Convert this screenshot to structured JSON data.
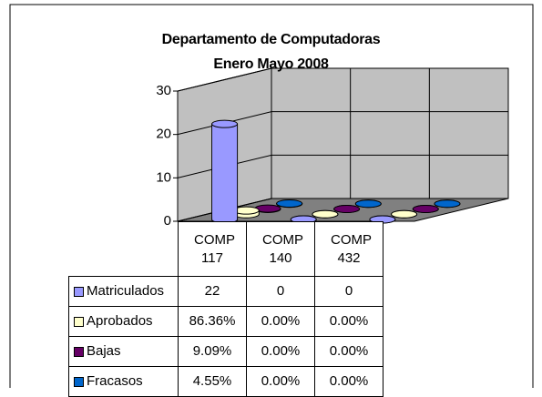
{
  "chart_data": {
    "type": "bar3d",
    "title": "Departamento de Computadoras\nEnero Mayo 2008",
    "categories": [
      "COMP 117",
      "COMP 140",
      "COMP 432"
    ],
    "series": [
      {
        "name": "Matriculados",
        "color": "#9999ff",
        "values": [
          22,
          0,
          0
        ]
      },
      {
        "name": "Aprobados",
        "color": "#ffffcc",
        "values": [
          0.8636,
          0,
          0
        ],
        "value_labels": [
          "86.36%",
          "0.00%",
          "0.00%"
        ]
      },
      {
        "name": "Bajas",
        "color": "#660066",
        "values": [
          0.0909,
          0,
          0
        ],
        "value_labels": [
          "9.09%",
          "0.00%",
          "0.00%"
        ]
      },
      {
        "name": "Fracasos",
        "color": "#0066cc",
        "values": [
          0.0455,
          0,
          0
        ],
        "value_labels": [
          "4.55%",
          "0.00%",
          "0.00%"
        ]
      }
    ],
    "ylim": [
      0,
      30
    ],
    "yticks": [
      0,
      10,
      20,
      30
    ],
    "grid": true
  }
}
